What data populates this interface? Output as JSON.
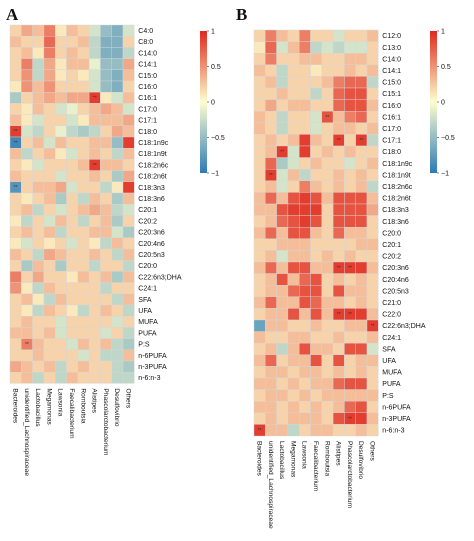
{
  "chart_data": [
    {
      "type": "heatmap",
      "panel": "A",
      "rows": [
        "C4:0",
        "C8:0",
        "C14:0",
        "C14:1",
        "C15:0",
        "C16:0",
        "C16:1",
        "C17:0",
        "C17:1",
        "C18:0",
        "C18:1n9c",
        "C18:1n9t",
        "C18:2n6c",
        "C18:2n6t",
        "C18:3n3",
        "C18:3n6",
        "C20:1",
        "C20:2",
        "C20:3n6",
        "C20:4n6",
        "C20:5n3",
        "C20:0",
        "C22:6n3;DHA",
        "C24:1",
        "SFA",
        "UFA",
        "MUFA",
        "PUFA",
        "P:S",
        "n-6PUFA",
        "n-3PUFA",
        "n-6:n-3"
      ],
      "columns": [
        "Bacteroides",
        "unidentified_Lachnospiraceae",
        "Lactobacillus",
        "Megamonas",
        "Lawsonia",
        "Faecalibacterium",
        "Romboutsia",
        "Alistipes",
        "Phascolarctobacterium",
        "Desulfovibrio",
        "Others"
      ],
      "values": [
        [
          0.2,
          0.4,
          0.3,
          0.6,
          0.1,
          0.3,
          0.2,
          -0.2,
          -0.5,
          -0.6,
          -0.2
        ],
        [
          0.3,
          0.2,
          0.2,
          0.7,
          0.2,
          0.2,
          0.3,
          -0.3,
          -0.6,
          -0.6,
          0.2
        ],
        [
          0.2,
          0.3,
          0.1,
          0.6,
          0.2,
          0.3,
          0.2,
          -0.3,
          -0.6,
          -0.6,
          -0.3
        ],
        [
          0.2,
          0.6,
          -0.3,
          0.4,
          0.1,
          0.3,
          0.3,
          -0.1,
          -0.5,
          -0.5,
          0.4
        ],
        [
          0.2,
          0.5,
          -0.3,
          0.4,
          0.1,
          0.2,
          0.1,
          -0.2,
          -0.5,
          -0.6,
          0.3
        ],
        [
          0.1,
          0.5,
          0.3,
          0.5,
          0.2,
          0.2,
          0.2,
          -0.2,
          -0.5,
          -0.6,
          0.2
        ],
        [
          -0.4,
          0.2,
          0.3,
          0.4,
          0.3,
          0.4,
          0.4,
          0.9,
          0.1,
          -0.2,
          0.3
        ],
        [
          0.2,
          0.1,
          0.3,
          0.2,
          -0.2,
          -0.1,
          0.2,
          0.3,
          0.4,
          0.3,
          -0.2
        ],
        [
          0.3,
          0.1,
          -0.2,
          0.2,
          0.2,
          -0.2,
          0.1,
          0.3,
          0.3,
          0.3,
          0.4
        ],
        [
          0.9,
          -0.2,
          -0.3,
          0.2,
          -0.1,
          -0.3,
          -0.4,
          -0.3,
          0.2,
          0.4,
          0.3
        ],
        [
          -0.9,
          0.2,
          0.3,
          -0.2,
          0.3,
          0.2,
          0.2,
          0.3,
          0.3,
          -0.5,
          0.9
        ],
        [
          0.3,
          -0.3,
          0.2,
          0.3,
          0.1,
          -0.2,
          0.2,
          0.3,
          0.2,
          -0.3,
          0.3
        ],
        [
          0.2,
          0.1,
          -0.2,
          0.2,
          0.2,
          0.2,
          0.3,
          0.9,
          0.3,
          0.3,
          0.2
        ],
        [
          0.3,
          0.2,
          0.2,
          0.2,
          -0.2,
          0.2,
          0.2,
          0.3,
          0.2,
          -0.4,
          0.4
        ],
        [
          -0.8,
          0.2,
          0.3,
          0.3,
          0.4,
          -0.2,
          0.2,
          0.2,
          -0.3,
          0.1,
          0.9
        ],
        [
          0.2,
          0.1,
          0.2,
          0.3,
          -0.4,
          0.2,
          -0.3,
          0.3,
          0.2,
          -0.4,
          0.3
        ],
        [
          0.2,
          0.3,
          -0.3,
          0.2,
          -0.2,
          0.2,
          0.3,
          0.4,
          0.3,
          -0.3,
          -0.2
        ],
        [
          0.1,
          -0.3,
          0.2,
          -0.2,
          0.3,
          0.2,
          -0.3,
          0.2,
          0.3,
          -0.4,
          0.2
        ],
        [
          0.2,
          0.3,
          0.2,
          0.3,
          -0.3,
          0.2,
          0.2,
          0.3,
          0.3,
          -0.2,
          -0.4
        ],
        [
          0.1,
          -0.2,
          0.2,
          0.1,
          0.2,
          -0.2,
          0.2,
          0.1,
          -0.3,
          0.3,
          0.2
        ],
        [
          0.3,
          0.2,
          -0.3,
          0.4,
          0.3,
          0.2,
          0.2,
          0.3,
          0.2,
          -0.3,
          0.3
        ],
        [
          0.2,
          -0.4,
          0.3,
          0.2,
          -0.4,
          0.2,
          0.2,
          -0.3,
          0.2,
          0.2,
          -0.3
        ],
        [
          0.6,
          0.2,
          0.4,
          0.2,
          0.2,
          0.1,
          0.3,
          0.2,
          0.3,
          -0.4,
          0.3
        ],
        [
          0.5,
          0.1,
          -0.3,
          0.3,
          0.2,
          0.2,
          0.2,
          0.2,
          -0.3,
          0.2,
          0.2
        ],
        [
          0.2,
          0.3,
          0.1,
          -0.3,
          0.3,
          0.2,
          0.2,
          0.2,
          0.2,
          -0.3,
          0.3
        ],
        [
          0.2,
          0.1,
          -0.3,
          0.3,
          0.2,
          0.1,
          -0.3,
          0.2,
          0.3,
          0.2,
          -0.3
        ],
        [
          0.2,
          0.3,
          0.2,
          0.2,
          -0.2,
          0.2,
          0.2,
          0.2,
          0.2,
          -0.2,
          0.2
        ],
        [
          0.3,
          0.3,
          0.2,
          0.3,
          -0.2,
          0.2,
          0.2,
          0.2,
          -0.2,
          0.2,
          -0.3
        ],
        [
          0.2,
          0.6,
          0.3,
          0.2,
          0.2,
          -0.2,
          0.3,
          0.2,
          0.3,
          -0.3,
          -0.4
        ],
        [
          0.2,
          0.2,
          0.3,
          0.2,
          0.2,
          0.2,
          -0.2,
          0.2,
          -0.3,
          -0.3,
          0.3
        ],
        [
          0.4,
          0.3,
          0.2,
          0.3,
          -0.3,
          0.2,
          0.3,
          0.2,
          0.2,
          -0.3,
          -0.4
        ],
        [
          0.2,
          0.3,
          -0.3,
          0.2,
          -0.3,
          0.3,
          0.2,
          0.2,
          0.2,
          -0.3,
          -0.3
        ]
      ],
      "annotations": [
        {
          "row": 6,
          "col": 7,
          "text": "**"
        },
        {
          "row": 9,
          "col": 0,
          "text": "**"
        },
        {
          "row": 10,
          "col": 0,
          "text": "**"
        },
        {
          "row": 12,
          "col": 7,
          "text": "**"
        },
        {
          "row": 14,
          "col": 0,
          "text": "**"
        },
        {
          "row": 28,
          "col": 1,
          "text": "**"
        }
      ],
      "color_scale": {
        "min": -1,
        "max": 1,
        "ticks": [
          "1",
          "0.5",
          "0",
          "−0.5",
          "−1"
        ],
        "low": "#2c7bb6",
        "mid": "#fdfecf",
        "high": "#e0281e"
      }
    },
    {
      "type": "heatmap",
      "panel": "B",
      "rows": [
        "C12:0",
        "C13:0",
        "C14:0",
        "C14:1",
        "C15:0",
        "C15:1",
        "C16:0",
        "C16:1",
        "C17:0",
        "C17:1",
        "C18:0",
        "C18:1n9c",
        "C18:1n9t",
        "C18:2n6c",
        "C18:2n6t",
        "C18:3n3",
        "C18:3n6",
        "C20:0",
        "C20:1",
        "C20:2",
        "C20:3n6",
        "C20:4n6",
        "C20:5n3",
        "C21:0",
        "C22:0",
        "C22:6n3;DHA",
        "C24:1",
        "SFA",
        "UFA",
        "MUFA",
        "PUFA",
        "P:S",
        "n-6PUFA",
        "n-3PUFA",
        "n-6:n-3"
      ],
      "columns": [
        "Bacteroides",
        "unidentified_Lachnospiraceae",
        "Lactobacillus",
        "Megamonas",
        "Lawsonia",
        "Faecalibacterium",
        "Romboutsia",
        "Alistipes",
        "Phascolarctobacterium",
        "Desulfovibrio",
        "Others"
      ],
      "values": [
        [
          0.2,
          0.6,
          0.3,
          0.2,
          0.6,
          0.2,
          0.2,
          -0.2,
          0.2,
          0.2,
          0.3
        ],
        [
          0.1,
          0.7,
          -0.2,
          0.3,
          0.6,
          -0.3,
          -0.2,
          -0.3,
          -0.2,
          -0.2,
          0.2
        ],
        [
          0.2,
          0.6,
          0.2,
          0.2,
          0.3,
          0.3,
          0.2,
          0.2,
          0.3,
          0.3,
          0.2
        ],
        [
          0.3,
          0.2,
          -0.3,
          0.2,
          0.2,
          0.1,
          0.2,
          0.2,
          0.3,
          0.2,
          0.3
        ],
        [
          0.2,
          0.3,
          -0.3,
          0.2,
          0.2,
          0.2,
          0.3,
          0.6,
          0.7,
          0.7,
          -0.3
        ],
        [
          0.2,
          0.2,
          0.3,
          0.2,
          0.2,
          -0.3,
          0.2,
          0.7,
          0.8,
          0.8,
          0.2
        ],
        [
          0.2,
          0.4,
          0.2,
          0.3,
          0.3,
          0.2,
          0.2,
          0.7,
          0.8,
          0.8,
          0.3
        ],
        [
          0.3,
          0.2,
          -0.3,
          0.2,
          0.2,
          -0.2,
          0.8,
          0.3,
          0.6,
          0.7,
          0.2
        ],
        [
          0.3,
          0.2,
          -0.3,
          0.2,
          0.2,
          -0.2,
          0.2,
          0.3,
          0.3,
          0.2,
          0.3
        ],
        [
          0.2,
          0.3,
          0.2,
          0.3,
          0.9,
          0.3,
          0.2,
          0.9,
          0.2,
          0.9,
          -0.3
        ],
        [
          0.2,
          0.3,
          0.9,
          -0.2,
          0.9,
          0.2,
          0.3,
          0.2,
          0.3,
          0.2,
          0.2
        ],
        [
          0.2,
          0.7,
          -0.4,
          -0.2,
          0.2,
          0.3,
          0.2,
          0.2,
          -0.2,
          0.2,
          0.3
        ],
        [
          0.2,
          0.9,
          -0.2,
          0.3,
          -0.3,
          0.2,
          0.2,
          0.3,
          0.2,
          0.3,
          0.2
        ],
        [
          0.2,
          0.3,
          -0.2,
          0.2,
          0.6,
          0.3,
          0.2,
          0.3,
          0.2,
          0.3,
          -0.3
        ],
        [
          0.3,
          0.7,
          0.3,
          0.8,
          0.9,
          0.8,
          0.3,
          0.8,
          0.8,
          0.8,
          0.3
        ],
        [
          0.3,
          0.3,
          0.8,
          0.9,
          0.9,
          0.9,
          0.2,
          0.8,
          0.8,
          0.8,
          0.4
        ],
        [
          0.2,
          0.3,
          0.7,
          0.8,
          0.9,
          0.8,
          0.2,
          0.8,
          0.8,
          0.8,
          0.2
        ],
        [
          0.3,
          0.7,
          0.3,
          0.8,
          0.8,
          0.3,
          0.2,
          0.7,
          0.3,
          0.3,
          0.2
        ],
        [
          0.2,
          0.2,
          0.3,
          0.3,
          0.3,
          0.2,
          0.2,
          0.2,
          0.2,
          0.3,
          0.3
        ],
        [
          0.2,
          0.3,
          -0.2,
          0.3,
          0.3,
          0.2,
          0.3,
          0.2,
          0.3,
          0.2,
          0.2
        ],
        [
          0.3,
          0.7,
          0.3,
          0.8,
          0.8,
          0.3,
          0.3,
          0.9,
          0.9,
          0.9,
          0.3
        ],
        [
          0.2,
          0.3,
          0.8,
          0.3,
          0.7,
          0.8,
          0.2,
          0.3,
          0.2,
          0.3,
          0.2
        ],
        [
          0.2,
          0.3,
          0.3,
          0.7,
          0.8,
          0.8,
          0.2,
          0.8,
          0.3,
          0.3,
          0.2
        ],
        [
          0.3,
          0.7,
          0.3,
          0.3,
          0.8,
          0.7,
          0.3,
          0.3,
          0.2,
          0.3,
          0.2
        ],
        [
          0.2,
          0.3,
          0.3,
          0.8,
          0.3,
          0.8,
          0.3,
          0.9,
          0.9,
          0.9,
          0.3
        ],
        [
          -0.7,
          0.3,
          0.3,
          0.2,
          0.2,
          0.3,
          0.2,
          0.2,
          0.3,
          0.3,
          0.9
        ],
        [
          0.3,
          0.2,
          0.2,
          0.3,
          0.3,
          0.2,
          0.2,
          0.3,
          0.2,
          0.2,
          0.3
        ],
        [
          0.2,
          0.3,
          -0.3,
          0.3,
          0.8,
          0.3,
          0.3,
          0.2,
          0.8,
          0.8,
          -0.2
        ],
        [
          0.3,
          0.7,
          0.2,
          0.3,
          0.3,
          0.8,
          0.2,
          0.8,
          0.2,
          0.3,
          0.3
        ],
        [
          0.2,
          0.3,
          0.3,
          0.2,
          0.3,
          0.3,
          0.2,
          0.3,
          0.2,
          0.3,
          0.2
        ],
        [
          0.3,
          0.3,
          0.2,
          0.3,
          0.2,
          0.3,
          0.3,
          0.7,
          0.8,
          0.8,
          0.2
        ],
        [
          0.2,
          0.3,
          0.3,
          0.2,
          0.3,
          0.2,
          0.3,
          0.3,
          0.3,
          0.3,
          0.3
        ],
        [
          0.3,
          0.3,
          0.2,
          0.3,
          0.2,
          0.3,
          0.2,
          0.3,
          0.7,
          0.8,
          0.2
        ],
        [
          0.2,
          0.3,
          0.2,
          0.3,
          0.3,
          0.3,
          0.2,
          0.8,
          0.9,
          0.9,
          0.3
        ],
        [
          0.9,
          0.3,
          0.3,
          -0.3,
          0.2,
          0.3,
          0.3,
          0.2,
          0.2,
          0.3,
          0.2
        ]
      ],
      "annotations": [
        {
          "row": 7,
          "col": 6,
          "text": "**"
        },
        {
          "row": 9,
          "col": 7,
          "text": "**"
        },
        {
          "row": 9,
          "col": 9,
          "text": "**"
        },
        {
          "row": 10,
          "col": 2,
          "text": "**"
        },
        {
          "row": 12,
          "col": 1,
          "text": "**"
        },
        {
          "row": 20,
          "col": 7,
          "text": "**"
        },
        {
          "row": 20,
          "col": 8,
          "text": "**"
        },
        {
          "row": 24,
          "col": 7,
          "text": "**"
        },
        {
          "row": 24,
          "col": 8,
          "text": "**"
        },
        {
          "row": 25,
          "col": 10,
          "text": "**"
        },
        {
          "row": 33,
          "col": 8,
          "text": "**"
        },
        {
          "row": 34,
          "col": 0,
          "text": "**"
        }
      ],
      "color_scale": {
        "min": -1,
        "max": 1,
        "ticks": [
          "1",
          "0.5",
          "0",
          "−0.5",
          "−1"
        ],
        "low": "#2c7bb6",
        "mid": "#fdfecf",
        "high": "#e0281e"
      }
    }
  ]
}
